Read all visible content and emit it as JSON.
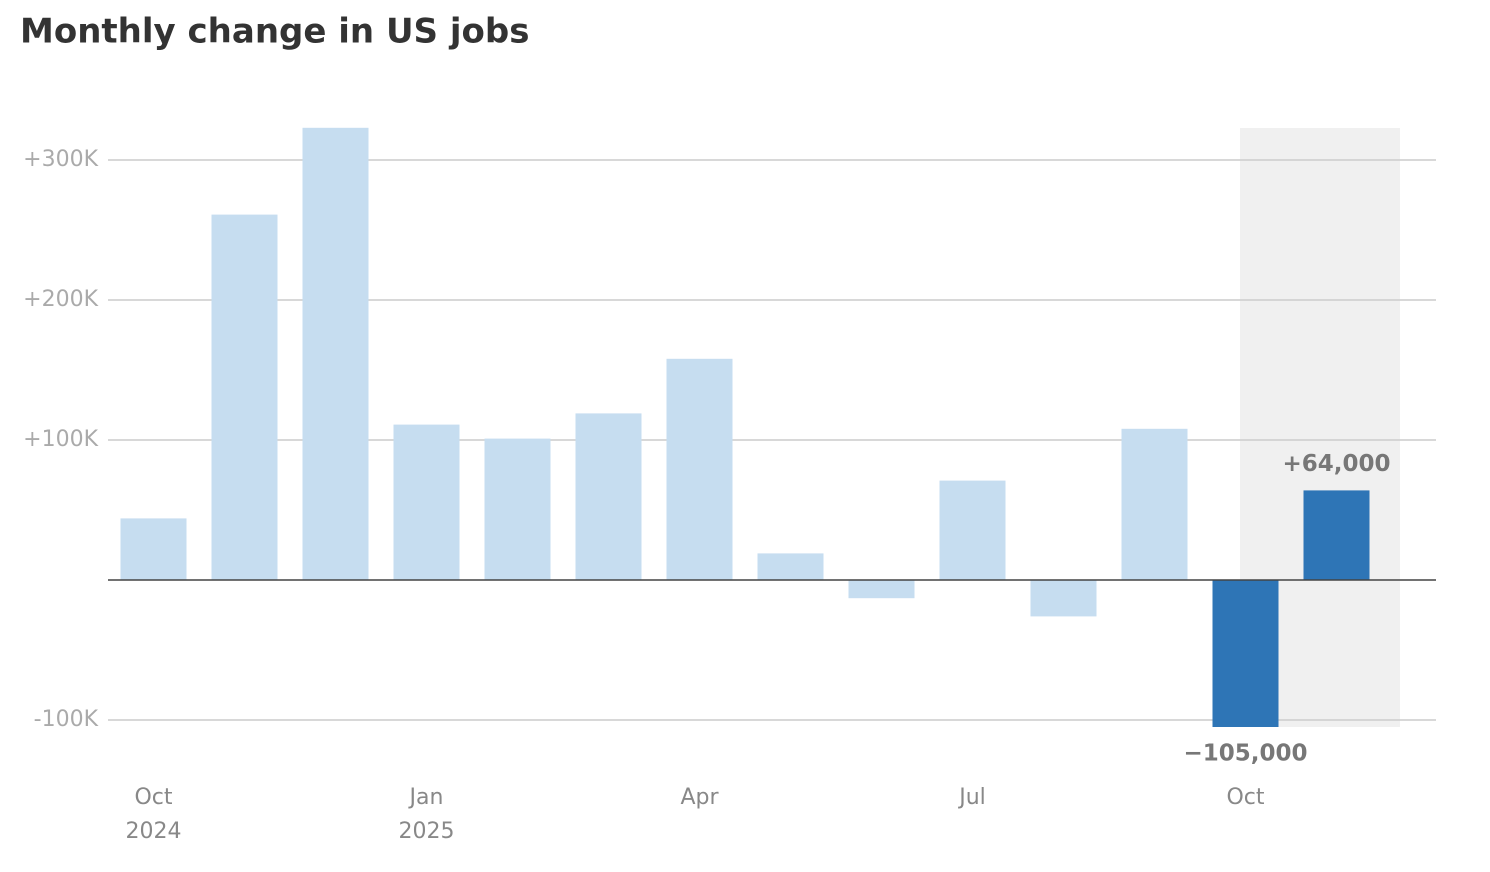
{
  "chart_data": {
    "type": "bar",
    "title": "Monthly change in US jobs",
    "categories": [
      "Oct",
      null,
      null,
      "Jan",
      null,
      null,
      "Apr",
      null,
      null,
      "Jul",
      null,
      null,
      "Oct",
      null
    ],
    "years": [
      "2024",
      null,
      null,
      "2025",
      null,
      null,
      null,
      null,
      null,
      null,
      null,
      null,
      null,
      null
    ],
    "values": [
      44000,
      261000,
      323000,
      111000,
      101000,
      119000,
      158000,
      19000,
      -13000,
      71000,
      -26000,
      108000,
      -105000,
      64000
    ],
    "value_labels": [
      null,
      null,
      null,
      null,
      null,
      null,
      null,
      null,
      null,
      null,
      null,
      null,
      "−105,000",
      "+64,000"
    ],
    "colors": [
      "#c6ddf0",
      "#c6ddf0",
      "#c6ddf0",
      "#c6ddf0",
      "#c6ddf0",
      "#c6ddf0",
      "#c6ddf0",
      "#c6ddf0",
      "#c6ddf0",
      "#c6ddf0",
      "#c6ddf0",
      "#c6ddf0",
      "#2e75b6",
      "#2e75b6"
    ],
    "highlight_color": "#f0f0f0",
    "ylim": [
      -110000,
      330000
    ],
    "yticks": [
      {
        "value": -100000,
        "label": "-100K"
      },
      {
        "value": 100000,
        "label": "+100K"
      },
      {
        "value": 200000,
        "label": "+200K"
      },
      {
        "value": 300000,
        "label": "+300K"
      }
    ],
    "grid": true
  }
}
